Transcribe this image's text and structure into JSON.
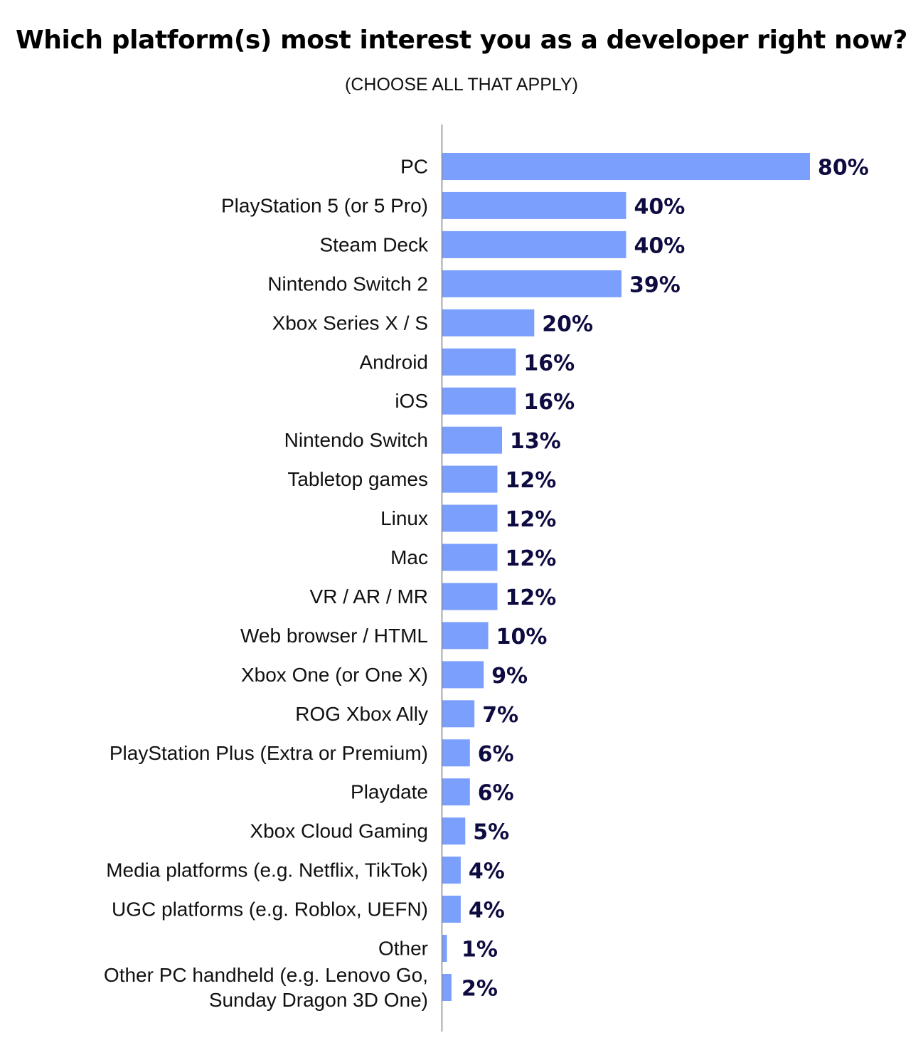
{
  "chart_data": {
    "type": "bar",
    "orientation": "horizontal",
    "title": "Which platform(s) most interest you as a developer right now?",
    "subtitle": "(CHOOSE ALL THAT APPLY)",
    "bar_color": "#7b9ffd",
    "value_label_color": "#0d0b40",
    "axis_color": "#888888",
    "grid": false,
    "legend": "none",
    "value_suffix": "%",
    "xlim": [
      0,
      80
    ],
    "categories": [
      [
        "PC"
      ],
      [
        "PlayStation 5 (or 5 Pro)"
      ],
      [
        "Steam Deck"
      ],
      [
        "Nintendo Switch 2"
      ],
      [
        "Xbox Series X / S"
      ],
      [
        "Android"
      ],
      [
        "iOS"
      ],
      [
        "Nintendo Switch"
      ],
      [
        "Tabletop games"
      ],
      [
        "Linux"
      ],
      [
        "Mac"
      ],
      [
        "VR / AR / MR"
      ],
      [
        "Web browser / HTML"
      ],
      [
        "Xbox One (or One X)"
      ],
      [
        "ROG Xbox Ally"
      ],
      [
        "PlayStation Plus (Extra or Premium)"
      ],
      [
        "Playdate"
      ],
      [
        "Xbox Cloud Gaming"
      ],
      [
        "Media platforms (e.g. Netflix, TikTok)"
      ],
      [
        "UGC platforms (e.g. Roblox, UEFN)"
      ],
      [
        "Other"
      ],
      [
        "Other PC handheld (e.g. Lenovo Go,",
        "Sunday Dragon 3D One)"
      ]
    ],
    "values": [
      80,
      40,
      40,
      39,
      20,
      16,
      16,
      13,
      12,
      12,
      12,
      12,
      10,
      9,
      7,
      6,
      6,
      5,
      4,
      4,
      1,
      2
    ],
    "value_labels": [
      "80%",
      "40%",
      "40%",
      "39%",
      "20%",
      "16%",
      "16%",
      "13%",
      "12%",
      "12%",
      "12%",
      "12%",
      "10%",
      "9%",
      "7%",
      "6%",
      "6%",
      "5%",
      "4%",
      "4%",
      "1%",
      "2%"
    ]
  }
}
